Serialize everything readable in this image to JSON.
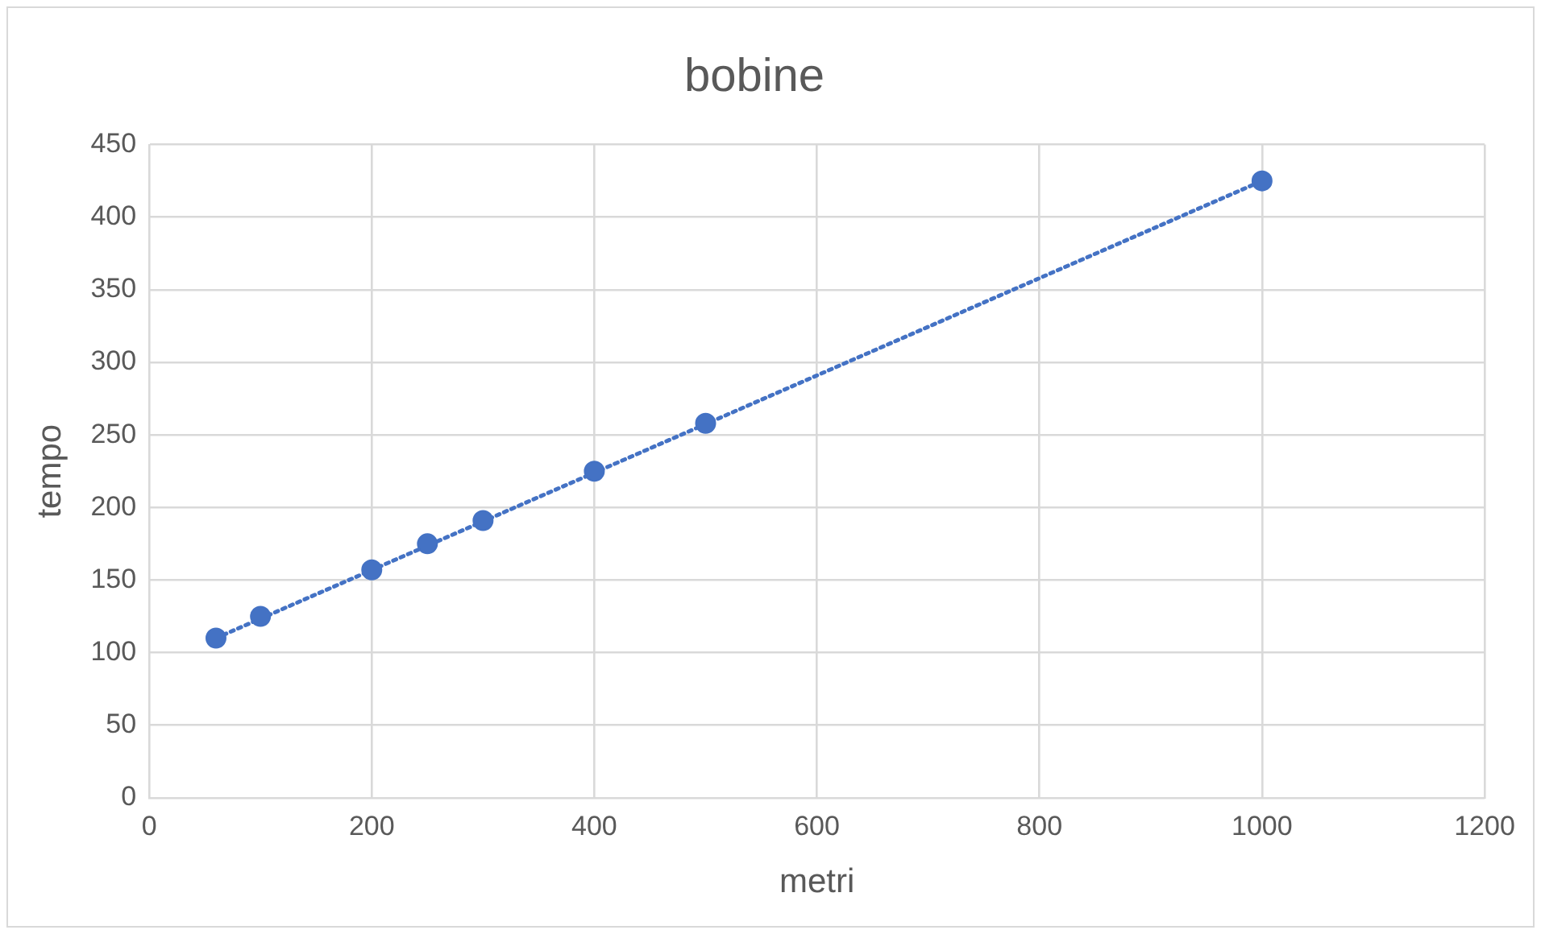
{
  "chart_data": {
    "type": "scatter",
    "title": "bobine",
    "xlabel": "metri",
    "ylabel": "tempo",
    "x": [
      60,
      100,
      200,
      250,
      300,
      400,
      500,
      1000
    ],
    "series": [
      {
        "color": "#4472c4",
        "values": [
          110,
          125,
          157,
          175,
          191,
          225,
          258,
          425
        ]
      },
      {
        "type": "line",
        "color": "#4472c4",
        "line_style": "dotted",
        "marker": "none",
        "x": [
          60,
          1000
        ],
        "values": [
          110,
          425
        ]
      }
    ],
    "xlim": [
      0,
      1200
    ],
    "xticks": [
      0,
      200,
      400,
      600,
      800,
      1000,
      1200
    ],
    "ylim": [
      0,
      450
    ],
    "yticks": [
      0,
      50,
      100,
      150,
      200,
      250,
      300,
      350,
      400,
      450
    ],
    "grid": true,
    "legend": false,
    "marker": "circle"
  }
}
